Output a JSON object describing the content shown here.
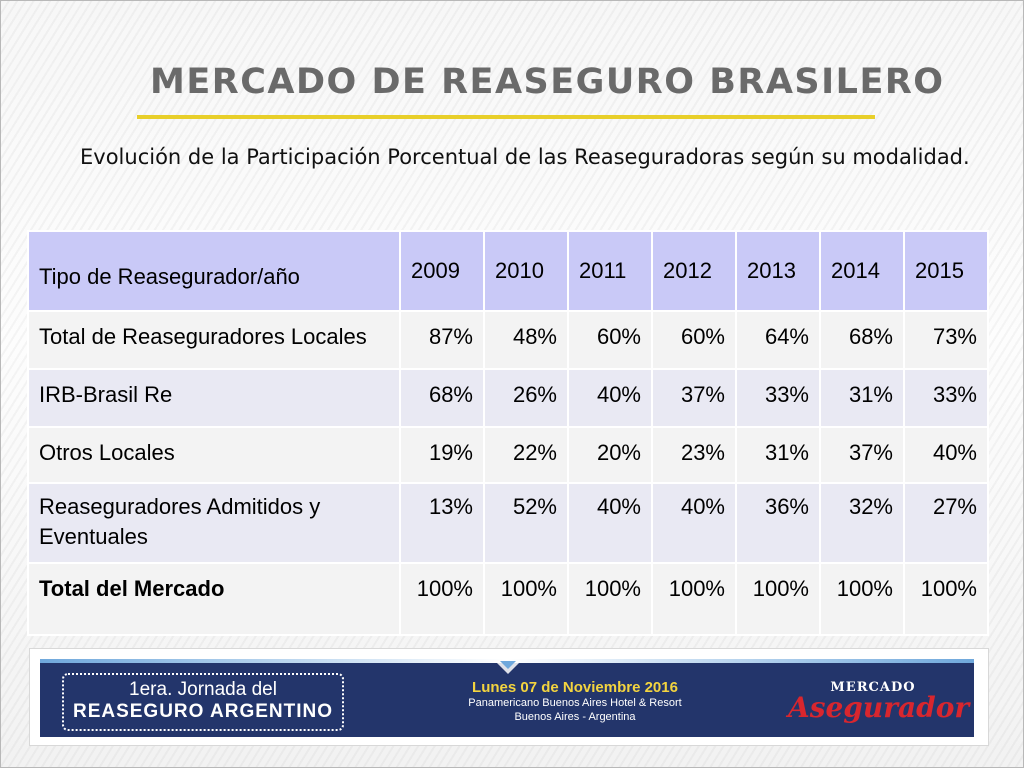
{
  "slide": {
    "title": "MERCADO DE REASEGURO BRASILERO",
    "subtitle": "Evolución de la Participación Porcentual de las Reaseguradoras según su modalidad."
  },
  "table": {
    "header": [
      "Tipo de Reasegurador/año",
      "2009",
      "2010",
      "2011",
      "2012",
      "2013",
      "2014",
      "2015"
    ],
    "rows": [
      {
        "label": "Total de Reaseguradores Locales",
        "values": [
          "87%",
          "48%",
          "60%",
          "60%",
          "64%",
          "68%",
          "73%"
        ]
      },
      {
        "label": "IRB-Brasil Re",
        "values": [
          "68%",
          "26%",
          "40%",
          "37%",
          "33%",
          "31%",
          "33%"
        ]
      },
      {
        "label": "Otros Locales",
        "values": [
          "19%",
          "22%",
          "20%",
          "23%",
          "31%",
          "37%",
          "40%"
        ]
      },
      {
        "label": "Reaseguradores Admitidos y Eventuales",
        "values": [
          "13%",
          "52%",
          "40%",
          "40%",
          "36%",
          "32%",
          "27%"
        ]
      },
      {
        "label": "Total del Mercado",
        "values": [
          "100%",
          "100%",
          "100%",
          "100%",
          "100%",
          "100%",
          "100%"
        ]
      }
    ]
  },
  "banner": {
    "event_line1": "1era. Jornada del",
    "event_line2": "REASEGURO ARGENTINO",
    "date": "Lunes 07 de Noviembre 2016",
    "venue": "Panamericano Buenos Aires Hotel & Resort",
    "city": "Buenos Aires - Argentina",
    "logo_top": "MERCADO",
    "logo_bottom": "Asegurador"
  },
  "colors": {
    "title": "#6a6a6a",
    "title_rule": "#e8cf2a",
    "table_header": "#c9c9f7",
    "banner_bg": "#23356b",
    "banner_date": "#f3d43f",
    "logo_red": "#d8262e"
  }
}
